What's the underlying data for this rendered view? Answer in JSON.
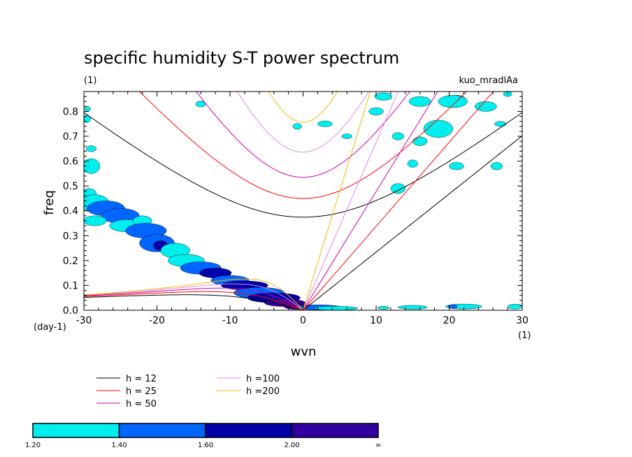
{
  "chart_data": {
    "type": "heatmap",
    "title": "specific humidity S-T power spectrum",
    "subtitle_left": "(1)",
    "subtitle_right": "kuo_mradlAa",
    "xlabel": "wvn",
    "ylabel": "freq",
    "x_unit": "(1)",
    "y_unit": "(day-1)",
    "xlim": [
      -30,
      30
    ],
    "ylim": [
      0,
      0.88
    ],
    "x_ticks": [
      -30,
      -20,
      -10,
      0,
      10,
      20,
      30
    ],
    "x_tick_labels": [
      "-30",
      "-20",
      "-10",
      "0",
      "10",
      "20",
      "30"
    ],
    "y_ticks": [
      0,
      0.1,
      0.2,
      0.3,
      0.4,
      0.5,
      0.6,
      0.7,
      0.8
    ],
    "y_tick_labels": [
      "0.0",
      "0.1",
      "0.2",
      "0.3",
      "0.4",
      "0.5",
      "0.6",
      "0.7",
      "0.8"
    ],
    "dispersion_curves": [
      {
        "name": "h = 12",
        "h": 12,
        "color": "#000000"
      },
      {
        "name": "h = 25",
        "h": 25,
        "color": "#ff0000"
      },
      {
        "name": "h = 50",
        "h": 50,
        "color": "#cc00aa"
      },
      {
        "name": "h =100",
        "h": 100,
        "color": "#dd88dd"
      },
      {
        "name": "h =200",
        "h": 200,
        "color": "#eebb00"
      }
    ],
    "colorbar": {
      "levels": [
        "1.20",
        "1.40",
        "1.60",
        "2.00",
        "∞"
      ],
      "colors": [
        "#00eeee",
        "#0066ff",
        "#0000aa",
        "#3300a0"
      ]
    },
    "power_patches": [
      {
        "x": -29,
        "y": 0.58,
        "rx": 1.2,
        "ry": 0.03,
        "level": 0
      },
      {
        "x": -29.3,
        "y": 0.47,
        "rx": 1.0,
        "ry": 0.02,
        "level": 0
      },
      {
        "x": -28.5,
        "y": 0.43,
        "rx": 2.0,
        "ry": 0.035,
        "level": 0
      },
      {
        "x": -27,
        "y": 0.41,
        "rx": 2.6,
        "ry": 0.03,
        "level": 1
      },
      {
        "x": -25,
        "y": 0.38,
        "rx": 2.6,
        "ry": 0.03,
        "level": 1
      },
      {
        "x": -28.5,
        "y": 0.36,
        "rx": 1.6,
        "ry": 0.02,
        "level": 0
      },
      {
        "x": -24,
        "y": 0.34,
        "rx": 2.5,
        "ry": 0.025,
        "level": 0
      },
      {
        "x": -22,
        "y": 0.36,
        "rx": 1.3,
        "ry": 0.02,
        "level": 0
      },
      {
        "x": -21.5,
        "y": 0.32,
        "rx": 2.8,
        "ry": 0.03,
        "level": 1
      },
      {
        "x": -20,
        "y": 0.27,
        "rx": 2.4,
        "ry": 0.035,
        "level": 1
      },
      {
        "x": -19.5,
        "y": 0.26,
        "rx": 1.0,
        "ry": 0.02,
        "level": 2
      },
      {
        "x": -17.5,
        "y": 0.24,
        "rx": 2.0,
        "ry": 0.03,
        "level": 0
      },
      {
        "x": -16,
        "y": 0.2,
        "rx": 2.5,
        "ry": 0.025,
        "level": 0
      },
      {
        "x": -14,
        "y": 0.17,
        "rx": 2.8,
        "ry": 0.025,
        "level": 1
      },
      {
        "x": -12,
        "y": 0.15,
        "rx": 2.2,
        "ry": 0.02,
        "level": 2
      },
      {
        "x": -10,
        "y": 0.12,
        "rx": 2.6,
        "ry": 0.02,
        "level": 1
      },
      {
        "x": -8,
        "y": 0.1,
        "rx": 3.2,
        "ry": 0.018,
        "level": 2
      },
      {
        "x": -6,
        "y": 0.07,
        "rx": 3.5,
        "ry": 0.022,
        "level": 1
      },
      {
        "x": -4,
        "y": 0.05,
        "rx": 3.6,
        "ry": 0.02,
        "level": 2
      },
      {
        "x": -2.5,
        "y": 0.03,
        "rx": 2.8,
        "ry": 0.015,
        "level": 3
      },
      {
        "x": -1,
        "y": 0.015,
        "rx": 1.6,
        "ry": 0.012,
        "level": 3
      },
      {
        "x": 2,
        "y": 0.012,
        "rx": 3.2,
        "ry": 0.01,
        "level": 1
      },
      {
        "x": 4.5,
        "y": 0.008,
        "rx": 3.0,
        "ry": 0.008,
        "level": 0
      },
      {
        "x": 15,
        "y": 0.012,
        "rx": 2.0,
        "ry": 0.008,
        "level": 0
      },
      {
        "x": 22,
        "y": 0.015,
        "rx": 2.5,
        "ry": 0.01,
        "level": 0
      },
      {
        "x": 20.5,
        "y": 0.015,
        "rx": 0.6,
        "ry": 0.008,
        "level": 1
      },
      {
        "x": 29,
        "y": 0.015,
        "rx": 1.0,
        "ry": 0.01,
        "level": 0
      },
      {
        "x": 11,
        "y": 0.01,
        "rx": 0.8,
        "ry": 0.006,
        "level": 0
      },
      {
        "x": 25,
        "y": 0.82,
        "rx": 1.5,
        "ry": 0.02,
        "level": 0
      },
      {
        "x": 21,
        "y": 0.85,
        "rx": 1.2,
        "ry": 0.015,
        "level": 1
      },
      {
        "x": 20.5,
        "y": 0.84,
        "rx": 2.0,
        "ry": 0.025,
        "level": 0
      },
      {
        "x": 16,
        "y": 0.84,
        "rx": 1.5,
        "ry": 0.02,
        "level": 0
      },
      {
        "x": 11,
        "y": 0.86,
        "rx": 1.2,
        "ry": 0.015,
        "level": 0
      },
      {
        "x": 10,
        "y": 0.8,
        "rx": 1.0,
        "ry": 0.015,
        "level": 0
      },
      {
        "x": 18.5,
        "y": 0.73,
        "rx": 1.2,
        "ry": 0.02,
        "level": 1
      },
      {
        "x": 18.5,
        "y": 0.73,
        "rx": 2.0,
        "ry": 0.035,
        "level": 0
      },
      {
        "x": 16,
        "y": 0.68,
        "rx": 1.0,
        "ry": 0.018,
        "level": 0
      },
      {
        "x": 13,
        "y": 0.7,
        "rx": 0.8,
        "ry": 0.015,
        "level": 0
      },
      {
        "x": 15,
        "y": 0.59,
        "rx": 0.7,
        "ry": 0.015,
        "level": 0
      },
      {
        "x": 13,
        "y": 0.49,
        "rx": 1.0,
        "ry": 0.02,
        "level": 0
      },
      {
        "x": 21,
        "y": 0.58,
        "rx": 1.0,
        "ry": 0.015,
        "level": 0
      },
      {
        "x": 26.5,
        "y": 0.58,
        "rx": 0.8,
        "ry": 0.015,
        "level": 0
      },
      {
        "x": 27,
        "y": 0.75,
        "rx": 0.8,
        "ry": 0.01,
        "level": 0
      },
      {
        "x": 3,
        "y": 0.75,
        "rx": 1.0,
        "ry": 0.012,
        "level": 0
      },
      {
        "x": -0.8,
        "y": 0.74,
        "rx": 0.6,
        "ry": 0.012,
        "level": 0
      },
      {
        "x": -14,
        "y": 0.83,
        "rx": 0.7,
        "ry": 0.012,
        "level": 0
      },
      {
        "x": -29.6,
        "y": 0.77,
        "rx": 0.5,
        "ry": 0.015,
        "level": 0
      },
      {
        "x": -29.5,
        "y": 0.81,
        "rx": 0.4,
        "ry": 0.01,
        "level": 0
      },
      {
        "x": -29,
        "y": 0.65,
        "rx": 0.7,
        "ry": 0.012,
        "level": 0
      },
      {
        "x": 6,
        "y": 0.7,
        "rx": 0.7,
        "ry": 0.01,
        "level": 0
      },
      {
        "x": 28,
        "y": 0.87,
        "rx": 0.6,
        "ry": 0.01,
        "level": 0
      }
    ]
  }
}
